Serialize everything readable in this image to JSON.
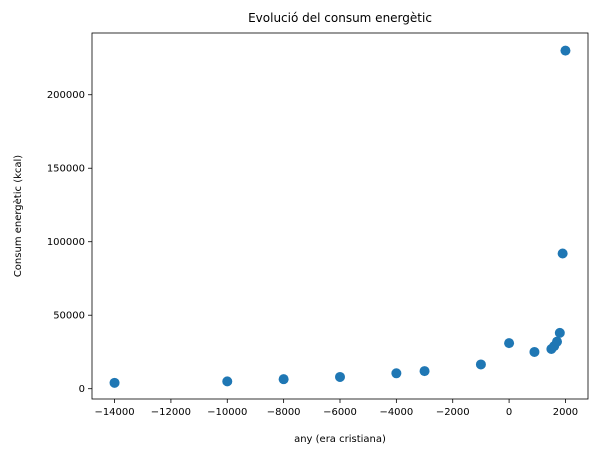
{
  "chart_data": {
    "type": "scatter",
    "title": "Evolució del consum energètic",
    "xlabel": "any (era cristiana)",
    "ylabel": "Consum energètic (kcal)",
    "xlim": [
      -14800,
      2800
    ],
    "ylim": [
      -7000,
      242000
    ],
    "x_ticks": [
      -14000,
      -12000,
      -10000,
      -8000,
      -6000,
      -4000,
      -2000,
      0,
      2000
    ],
    "x_tick_labels": [
      "−14000",
      "−12000",
      "−10000",
      "−8000",
      "−6000",
      "−4000",
      "−2000",
      "0",
      "2000"
    ],
    "y_ticks": [
      0,
      50000,
      100000,
      150000,
      200000
    ],
    "y_tick_labels": [
      "0",
      "50000",
      "100000",
      "150000",
      "200000"
    ],
    "grid": false,
    "marker_color": "#1f77b4",
    "points": [
      {
        "x": -14000,
        "y": 4000
      },
      {
        "x": -10000,
        "y": 5000
      },
      {
        "x": -8000,
        "y": 6500
      },
      {
        "x": -6000,
        "y": 8000
      },
      {
        "x": -4000,
        "y": 10500
      },
      {
        "x": -3000,
        "y": 12000
      },
      {
        "x": -1000,
        "y": 16500
      },
      {
        "x": 0,
        "y": 31000
      },
      {
        "x": 900,
        "y": 25000
      },
      {
        "x": 1500,
        "y": 27000
      },
      {
        "x": 1600,
        "y": 29000
      },
      {
        "x": 1700,
        "y": 32000
      },
      {
        "x": 1800,
        "y": 38000
      },
      {
        "x": 1900,
        "y": 92000
      },
      {
        "x": 2000,
        "y": 230000
      }
    ]
  }
}
